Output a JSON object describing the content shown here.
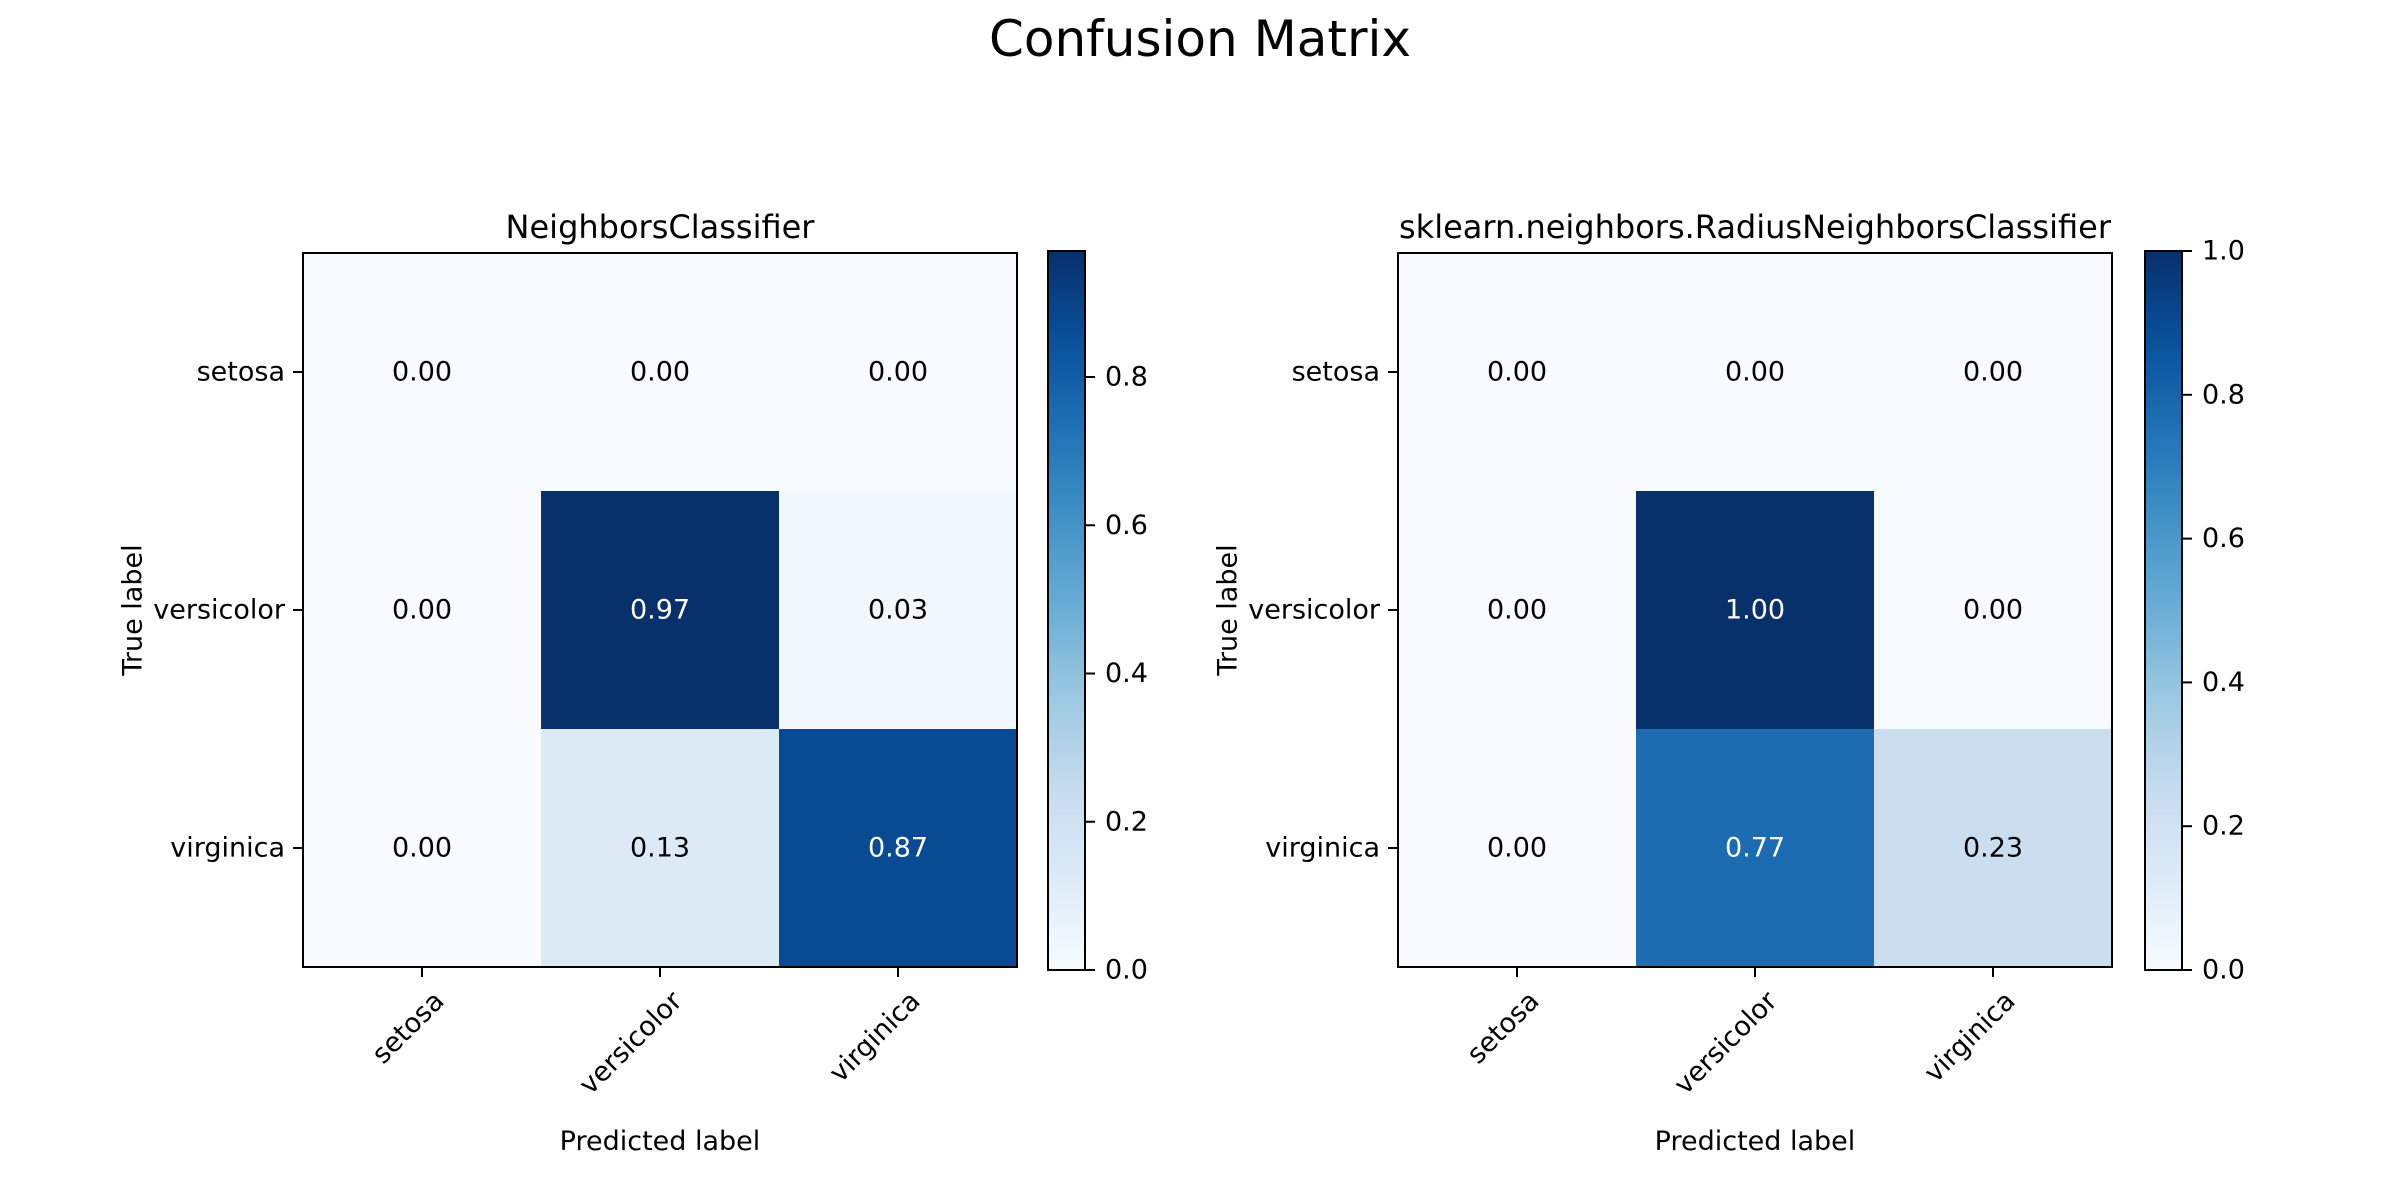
{
  "figure": {
    "title": "Confusion Matrix"
  },
  "chart_data": [
    {
      "type": "heatmap",
      "title": "NeighborsClassifier",
      "xlabel": "Predicted label",
      "ylabel": "True label",
      "x_categories": [
        "setosa",
        "versicolor",
        "virginica"
      ],
      "y_categories": [
        "setosa",
        "versicolor",
        "virginica"
      ],
      "values": [
        [
          0.0,
          0.0,
          0.0
        ],
        [
          0.0,
          0.97,
          0.03
        ],
        [
          0.0,
          0.13,
          0.87
        ]
      ],
      "labels": [
        [
          "0.00",
          "0.00",
          "0.00"
        ],
        [
          "0.00",
          "0.97",
          "0.03"
        ],
        [
          "0.00",
          "0.13",
          "0.87"
        ]
      ],
      "colormap": "Blues",
      "vmin": 0.0,
      "vmax": 0.97,
      "colorbar_ticks": [
        0.0,
        0.2,
        0.4,
        0.6,
        0.8
      ],
      "colorbar_tick_labels": [
        "0.0",
        "0.2",
        "0.4",
        "0.6",
        "0.8"
      ]
    },
    {
      "type": "heatmap",
      "title": "sklearn.neighbors.RadiusNeighborsClassifier",
      "xlabel": "Predicted label",
      "ylabel": "True label",
      "x_categories": [
        "setosa",
        "versicolor",
        "virginica"
      ],
      "y_categories": [
        "setosa",
        "versicolor",
        "virginica"
      ],
      "values": [
        [
          0.0,
          0.0,
          0.0
        ],
        [
          0.0,
          1.0,
          0.0
        ],
        [
          0.0,
          0.77,
          0.23
        ]
      ],
      "labels": [
        [
          "0.00",
          "0.00",
          "0.00"
        ],
        [
          "0.00",
          "1.00",
          "0.00"
        ],
        [
          "0.00",
          "0.77",
          "0.23"
        ]
      ],
      "colormap": "Blues",
      "vmin": 0.0,
      "vmax": 1.0,
      "colorbar_ticks": [
        0.0,
        0.2,
        0.4,
        0.6,
        0.8,
        1.0
      ],
      "colorbar_tick_labels": [
        "0.0",
        "0.2",
        "0.4",
        "0.6",
        "0.8",
        "1.0"
      ]
    }
  ]
}
